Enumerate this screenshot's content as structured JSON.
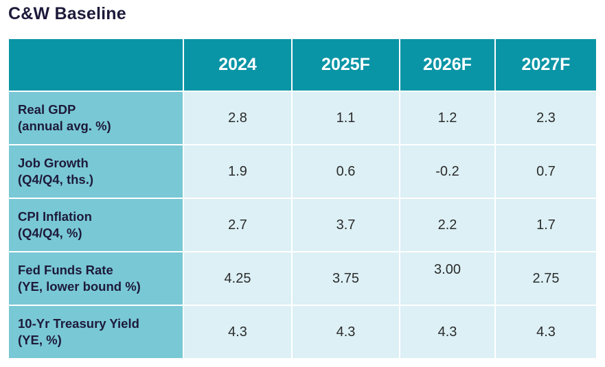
{
  "title": "C&W Baseline",
  "chart_data": {
    "type": "table",
    "title": "C&W Baseline",
    "columns": [
      "2024",
      "2025F",
      "2026F",
      "2027F"
    ],
    "rows": [
      {
        "label": "Real GDP",
        "sublabel": "(annual avg. %)",
        "values": [
          "2.8",
          "1.1",
          "1.2",
          "2.3"
        ]
      },
      {
        "label": "Job Growth",
        "sublabel": "(Q4/Q4, ths.)",
        "values": [
          "1.9",
          "0.6",
          "-0.2",
          "0.7"
        ]
      },
      {
        "label": "CPI Inflation",
        "sublabel": "(Q4/Q4, %)",
        "values": [
          "2.7",
          "3.7",
          "2.2",
          "1.7"
        ]
      },
      {
        "label": "Fed Funds Rate",
        "sublabel": "(YE, lower bound %)",
        "values": [
          "4.25",
          "3.75",
          "3.00",
          "2.75"
        ]
      },
      {
        "label": "10-Yr Treasury Yield",
        "sublabel": "(YE, %)",
        "values": [
          "4.3",
          "4.3",
          "4.3",
          "4.3"
        ]
      }
    ]
  },
  "colors": {
    "header_bg": "#0a95a6",
    "label_bg": "#79c8d5",
    "cell_bg": "#dcf0f5",
    "title_text": "#1d1a3a"
  }
}
